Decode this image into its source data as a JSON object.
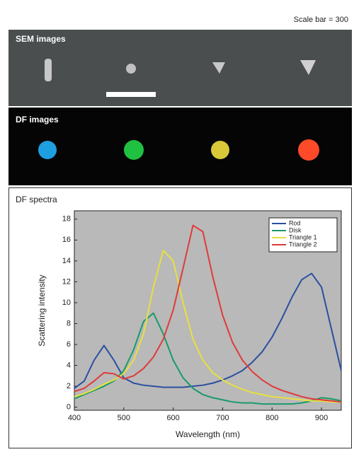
{
  "scale_bar_text": "Scale bar = 300",
  "panels": [
    "SEM images",
    "DF images",
    "DF spectra"
  ],
  "chart_data": {
    "type": "line",
    "x_label": "Wavelength (nm)",
    "y_label": "Scattering intensity",
    "x": [
      400,
      420,
      440,
      460,
      480,
      500,
      520,
      540,
      560,
      580,
      600,
      620,
      640,
      660,
      680,
      700,
      720,
      740,
      760,
      780,
      800,
      820,
      840,
      860,
      880,
      900,
      920,
      940
    ],
    "series": [
      {
        "name": "Rod",
        "color": "#2a4fa0",
        "values": [
          1.8,
          2.5,
          4.5,
          5.9,
          4.5,
          2.8,
          2.3,
          2.1,
          2.0,
          1.9,
          1.9,
          1.9,
          2.0,
          2.1,
          2.3,
          2.6,
          3.0,
          3.5,
          4.3,
          5.3,
          6.7,
          8.5,
          10.5,
          12.2,
          12.8,
          11.5,
          7.5,
          3.5
        ]
      },
      {
        "name": "Disk",
        "color": "#1a9a6a",
        "values": [
          0.8,
          1.2,
          1.6,
          2.0,
          2.5,
          3.5,
          5.5,
          8.2,
          9.0,
          7.0,
          4.5,
          2.8,
          1.8,
          1.2,
          0.9,
          0.7,
          0.5,
          0.4,
          0.4,
          0.3,
          0.3,
          0.3,
          0.3,
          0.4,
          0.6,
          0.9,
          0.8,
          0.6
        ]
      },
      {
        "name": "Triangle 1",
        "color": "#e8e040",
        "values": [
          1.0,
          1.3,
          1.7,
          2.2,
          2.6,
          3.2,
          4.5,
          7.0,
          11.5,
          15.0,
          14.0,
          10.0,
          6.5,
          4.5,
          3.3,
          2.6,
          2.1,
          1.7,
          1.4,
          1.2,
          1.0,
          0.9,
          0.8,
          0.7,
          0.6,
          0.6,
          0.5,
          0.5
        ]
      },
      {
        "name": "Triangle 2",
        "color": "#e03a3a",
        "values": [
          1.5,
          1.8,
          2.5,
          3.3,
          3.2,
          2.7,
          3.0,
          3.7,
          4.8,
          6.5,
          9.3,
          13.3,
          17.4,
          16.8,
          12.5,
          8.8,
          6.2,
          4.5,
          3.4,
          2.6,
          2.0,
          1.6,
          1.3,
          1.0,
          0.8,
          0.7,
          0.6,
          0.5
        ]
      }
    ],
    "xlim": [
      400,
      940
    ],
    "ylim": [
      -0.3,
      18.8
    ],
    "xticks": [
      400,
      500,
      600,
      700,
      800,
      900
    ],
    "yticks": [
      0,
      2,
      4,
      6,
      8,
      10,
      12,
      14,
      16,
      18
    ],
    "legend": "upper right",
    "background": "#b9b9b9"
  }
}
